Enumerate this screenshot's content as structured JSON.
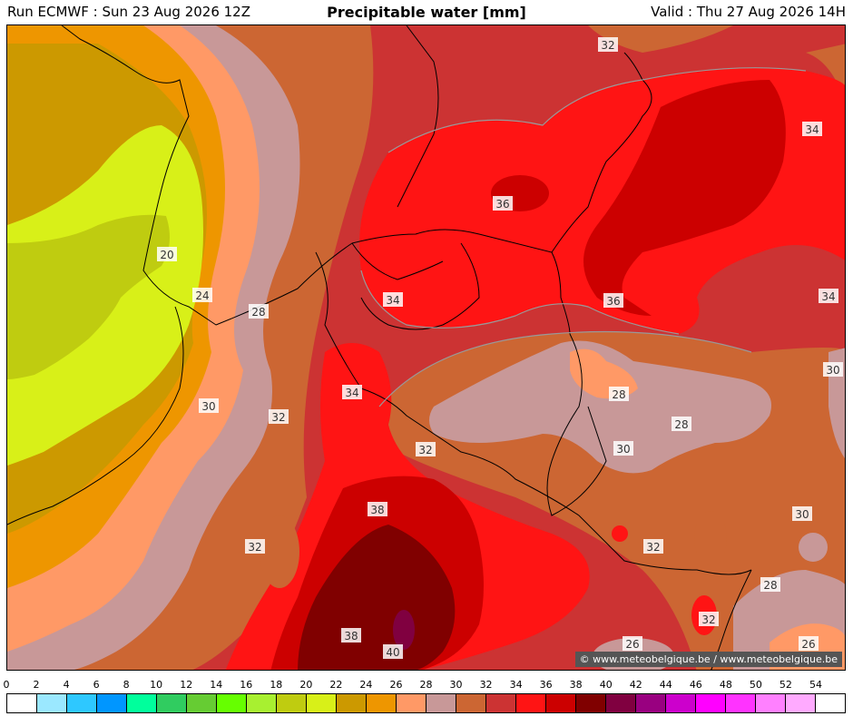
{
  "header": {
    "run": "Run ECMWF : Sun 23 Aug 2026 12Z",
    "title": "Precipitable water [mm]",
    "valid": "Valid : Thu 27 Aug 2026 14H"
  },
  "credit": "© www.meteobelgique.be / www.meteobelgique.be",
  "scale": {
    "ticks": [
      "0",
      "2",
      "4",
      "6",
      "8",
      "10",
      "12",
      "14",
      "16",
      "18",
      "20",
      "22",
      "24",
      "26",
      "28",
      "30",
      "32",
      "34",
      "36",
      "38",
      "40",
      "42",
      "44",
      "46",
      "48",
      "50",
      "52",
      "54"
    ],
    "colors": [
      "#ffffff",
      "#9be8ff",
      "#2ec8ff",
      "#0096ff",
      "#00ff9c",
      "#30cc60",
      "#66cc33",
      "#66ff00",
      "#a8f030",
      "#bfcc10",
      "#d8f018",
      "#cc9900",
      "#ee9600",
      "#ff9966",
      "#c89898",
      "#cc6633",
      "#cc3333",
      "#ff1414",
      "#cc0000",
      "#800000",
      "#800040",
      "#990080",
      "#cc00cc",
      "#ff00ff",
      "#ff33ff",
      "#ff80ff",
      "#ffaaff",
      "#ffffff"
    ]
  },
  "contour_labels": [
    "32",
    "34",
    "36",
    "34",
    "36",
    "34",
    "30",
    "28",
    "28",
    "30",
    "20",
    "24",
    "28",
    "30",
    "32",
    "34",
    "32",
    "38",
    "32",
    "32",
    "30",
    "28",
    "32",
    "38",
    "40",
    "26",
    "26"
  ]
}
